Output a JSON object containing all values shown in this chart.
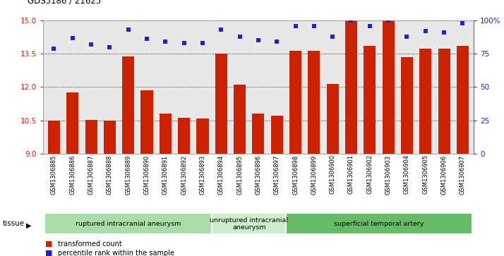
{
  "title": "GDS5186 / 21625",
  "samples": [
    "GSM1306885",
    "GSM1306886",
    "GSM1306887",
    "GSM1306888",
    "GSM1306889",
    "GSM1306890",
    "GSM1306891",
    "GSM1306892",
    "GSM1306893",
    "GSM1306894",
    "GSM1306895",
    "GSM1306896",
    "GSM1306897",
    "GSM1306898",
    "GSM1306899",
    "GSM1306900",
    "GSM1306901",
    "GSM1306902",
    "GSM1306903",
    "GSM1306904",
    "GSM1306905",
    "GSM1306906",
    "GSM1306907"
  ],
  "bar_values": [
    10.48,
    11.75,
    10.53,
    10.48,
    13.38,
    11.87,
    10.82,
    10.63,
    10.57,
    13.52,
    12.12,
    10.82,
    10.72,
    13.62,
    13.64,
    12.15,
    15.0,
    13.85,
    15.0,
    13.35,
    13.72,
    13.72,
    13.85
  ],
  "percentile_values": [
    79,
    87,
    82,
    80,
    93,
    86,
    84,
    83,
    83,
    93,
    88,
    85,
    84,
    96,
    96,
    88,
    100,
    96,
    100,
    88,
    92,
    91,
    98
  ],
  "ylim_left": [
    9,
    15
  ],
  "ylim_right": [
    0,
    100
  ],
  "yticks_left": [
    9,
    10.5,
    12,
    13.5,
    15
  ],
  "yticks_right": [
    0,
    25,
    50,
    75,
    100
  ],
  "ytick_labels_right": [
    "0",
    "25",
    "50",
    "75",
    "100%"
  ],
  "bar_color": "#cc2200",
  "dot_color": "#2222cc",
  "grid_color": "#000000",
  "plot_bg": "#e8e8e8",
  "tissue_groups": [
    {
      "label": "ruptured intracranial aneurysm",
      "start": 0,
      "end": 8,
      "color": "#aaddaa"
    },
    {
      "label": "unruptured intracranial\naneurysm",
      "start": 9,
      "end": 12,
      "color": "#cceecc"
    },
    {
      "label": "superficial temporal artery",
      "start": 13,
      "end": 22,
      "color": "#66bb66"
    }
  ],
  "tissue_label": "tissue",
  "legend_bar_label": "transformed count",
  "legend_dot_label": "percentile rank within the sample",
  "fig_width": 7.14,
  "fig_height": 3.63,
  "dpi": 100
}
